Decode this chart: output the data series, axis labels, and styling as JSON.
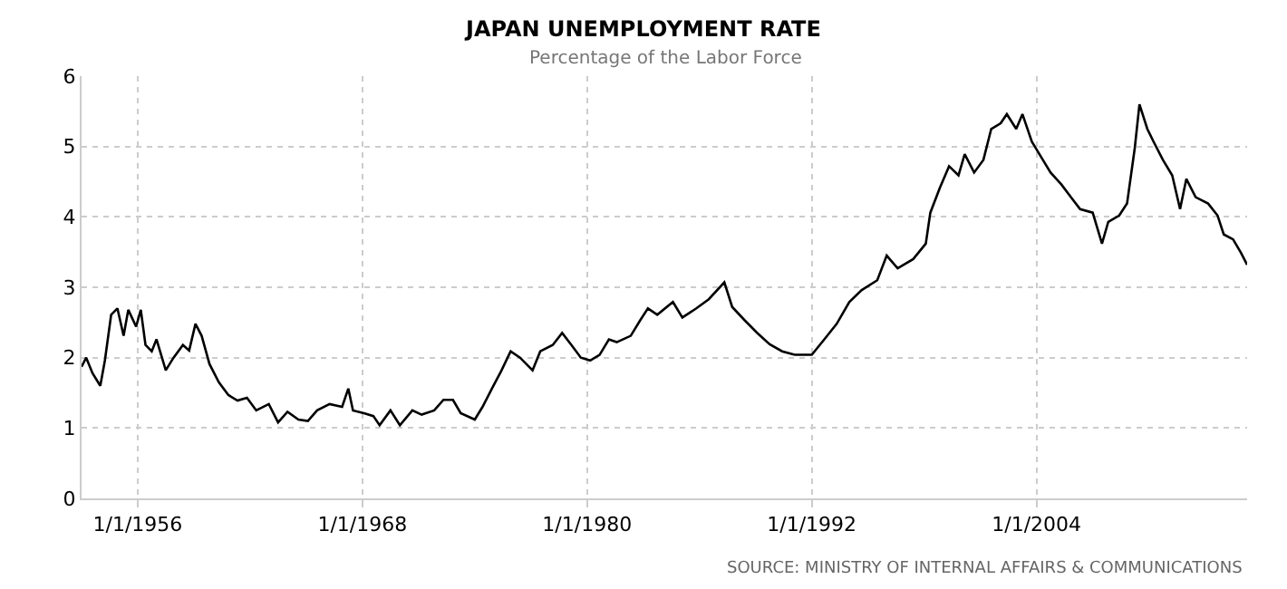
{
  "chart_data": {
    "type": "line",
    "title": "JAPAN UNEMPLOYMENT RATE",
    "subtitle": "Percentage of the Labor Force",
    "annotations": [
      "SOURCE: MINISTRY OF INTERNAL AFFAIRS & COMMUNICATIONS"
    ],
    "x": [
      "1953-01",
      "1953-04",
      "1953-08",
      "1954-01",
      "1954-04",
      "1954-08",
      "1954-12",
      "1955-04",
      "1955-07",
      "1955-12",
      "1956-03",
      "1956-06",
      "1956-10",
      "1957-01",
      "1957-07",
      "1957-12",
      "1958-06",
      "1958-10",
      "1959-02",
      "1959-06",
      "1959-11",
      "1960-05",
      "1960-11",
      "1961-05",
      "1961-11",
      "1962-05",
      "1963-01",
      "1963-07",
      "1964-01",
      "1964-08",
      "1965-02",
      "1965-08",
      "1966-04",
      "1966-12",
      "1967-04",
      "1967-07",
      "1968-02",
      "1968-08",
      "1968-12",
      "1969-07",
      "1970-01",
      "1970-09",
      "1971-03",
      "1971-11",
      "1972-05",
      "1972-11",
      "1973-04",
      "1974-01",
      "1974-06",
      "1974-12",
      "1975-06",
      "1975-12",
      "1976-06",
      "1977-02",
      "1977-07",
      "1978-03",
      "1978-09",
      "1979-03",
      "1979-09",
      "1980-03",
      "1980-09",
      "1981-03",
      "1981-08",
      "1982-05",
      "1982-11",
      "1983-04",
      "1983-10",
      "1984-08",
      "1985-02",
      "1985-11",
      "1986-07",
      "1987-05",
      "1987-10",
      "1988-06",
      "1989-02",
      "1989-10",
      "1990-06",
      "1991-02",
      "1992-01",
      "1992-09",
      "1993-05",
      "1994-01",
      "1994-09",
      "1995-07",
      "1996-01",
      "1996-08",
      "1997-06",
      "1998-02",
      "1998-05",
      "1998-11",
      "1999-05",
      "1999-11",
      "2000-03",
      "2000-09",
      "2001-03",
      "2001-08",
      "2002-02",
      "2002-06",
      "2002-12",
      "2003-04",
      "2003-10",
      "2004-04",
      "2004-10",
      "2005-05",
      "2005-11",
      "2006-05",
      "2007-01",
      "2007-07",
      "2007-11",
      "2008-06",
      "2008-11",
      "2009-04",
      "2009-07",
      "2009-12",
      "2010-04",
      "2010-10",
      "2011-04",
      "2011-09",
      "2012-01",
      "2012-07",
      "2013-03",
      "2013-09",
      "2014-01",
      "2014-07",
      "2014-12",
      "2015-04"
    ],
    "series": [
      {
        "color": "#000000",
        "values": [
          1.87,
          2.0,
          1.78,
          1.6,
          1.96,
          2.61,
          2.7,
          2.31,
          2.68,
          2.44,
          2.68,
          2.18,
          2.09,
          2.26,
          1.82,
          2.0,
          2.18,
          2.1,
          2.48,
          2.31,
          1.91,
          1.65,
          1.47,
          1.39,
          1.43,
          1.25,
          1.34,
          1.08,
          1.23,
          1.12,
          1.1,
          1.25,
          1.34,
          1.3,
          1.56,
          1.25,
          1.21,
          1.17,
          1.04,
          1.25,
          1.04,
          1.25,
          1.19,
          1.25,
          1.4,
          1.4,
          1.21,
          1.12,
          1.3,
          1.56,
          1.81,
          2.09,
          2.0,
          1.82,
          2.09,
          2.18,
          2.35,
          2.18,
          2.0,
          1.96,
          2.04,
          2.26,
          2.22,
          2.31,
          2.53,
          2.7,
          2.61,
          2.79,
          2.57,
          2.7,
          2.83,
          3.07,
          2.72,
          2.53,
          2.35,
          2.19,
          2.09,
          2.04,
          2.04,
          2.26,
          2.48,
          2.79,
          2.96,
          3.1,
          3.45,
          3.27,
          3.4,
          3.62,
          4.06,
          4.41,
          4.72,
          4.59,
          4.89,
          4.63,
          4.81,
          5.25,
          5.33,
          5.46,
          5.25,
          5.46,
          5.07,
          4.85,
          4.63,
          4.46,
          4.28,
          4.11,
          4.06,
          3.62,
          3.93,
          4.02,
          4.19,
          4.98,
          5.6,
          5.25,
          5.07,
          4.81,
          4.59,
          4.11,
          4.54,
          4.28,
          4.19,
          4.02,
          3.75,
          3.68,
          3.49,
          3.32
        ]
      }
    ],
    "xlim": [
      "1953-01",
      "2015-04"
    ],
    "xticks": [
      {
        "value": "1956-01-01",
        "label": "1/1/1956"
      },
      {
        "value": "1968-01-01",
        "label": "1/1/1968"
      },
      {
        "value": "1980-01-01",
        "label": "1/1/1980"
      },
      {
        "value": "1992-01-01",
        "label": "1/1/1992"
      },
      {
        "value": "2004-01-01",
        "label": "1/1/2004"
      }
    ],
    "ylim": [
      0,
      6
    ],
    "yticks": [
      0,
      1,
      2,
      3,
      4,
      5,
      6
    ],
    "grid": true,
    "legend": false,
    "marker": "none",
    "line_style": "solid"
  }
}
